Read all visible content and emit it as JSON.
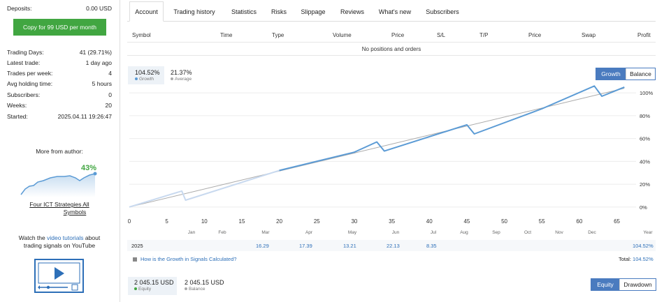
{
  "sidebar": {
    "deposits": {
      "label": "Deposits:",
      "value": "0.00 USD"
    },
    "copy_button": "Copy for 99 USD per month",
    "stats": [
      {
        "label": "Trading Days:",
        "value": "41 (29.71%)"
      },
      {
        "label": "Latest trade:",
        "value": "1 day ago"
      },
      {
        "label": "Trades per week:",
        "value": "4"
      },
      {
        "label": "Avg holding time:",
        "value": "5 hours"
      },
      {
        "label": "Subscribers:",
        "value": "0"
      },
      {
        "label": "Weeks:",
        "value": "20"
      },
      {
        "label": "Started:",
        "value": "2025.04.11 19:26:47"
      }
    ],
    "more_from_author": "More from author:",
    "author_signal": {
      "growth": "43%",
      "name_line1": "Four ICT Strategies All",
      "name_line2": "Symbols"
    },
    "watch": {
      "before": "Watch the ",
      "link": "video tutorials",
      "after": " about",
      "line2": "trading signals on YouTube"
    }
  },
  "tabs": [
    "Account",
    "Trading history",
    "Statistics",
    "Risks",
    "Slippage",
    "Reviews",
    "What's new",
    "Subscribers"
  ],
  "active_tab": "Account",
  "positions": {
    "columns": [
      "Symbol",
      "Time",
      "Type",
      "Volume",
      "Price",
      "S/L",
      "T/P",
      "Price",
      "Swap",
      "Profit"
    ],
    "empty_text": "No positions and orders"
  },
  "growth_panel": {
    "growth": {
      "value": "104.52%",
      "label": "Growth"
    },
    "average": {
      "value": "21.37%",
      "label": "Average"
    },
    "toggle": [
      "Growth",
      "Balance"
    ]
  },
  "chart_data": {
    "type": "line",
    "x_ticks": [
      0,
      5,
      10,
      15,
      20,
      25,
      30,
      35,
      40,
      45,
      50,
      55,
      60,
      65
    ],
    "y_ticks": [
      "0%",
      "20%",
      "40%",
      "60%",
      "80%",
      "100%"
    ],
    "ylim": [
      -5,
      108
    ],
    "xlim": [
      0,
      67
    ],
    "months": [
      "Jan",
      "Feb",
      "Mar",
      "Apr",
      "May",
      "Jun",
      "Jul",
      "Aug",
      "Sep",
      "Oct",
      "Nov",
      "Dec",
      "Year"
    ],
    "series": [
      {
        "values": [
          [
            0,
            0
          ],
          [
            7,
            14
          ],
          [
            7.5,
            6
          ],
          [
            20,
            32
          ],
          [
            30,
            48
          ],
          [
            33,
            57
          ],
          [
            34,
            49
          ],
          [
            45,
            72
          ],
          [
            46,
            64
          ],
          [
            55,
            86
          ],
          [
            62,
            106
          ],
          [
            63,
            97
          ],
          [
            66,
            105
          ]
        ]
      },
      {
        "values": [
          [
            0,
            0
          ],
          [
            66,
            104
          ]
        ]
      }
    ],
    "year": "2025",
    "monthly": [
      "",
      "",
      "16.29",
      "17.39",
      "13.21",
      "22.13",
      "8.35",
      "",
      "",
      "",
      "",
      "",
      "104.52%"
    ]
  },
  "how_link": "How is the Growth in Signals Calculated?",
  "total": {
    "label": "Total:",
    "value": "104.52%"
  },
  "equity_panel": {
    "equity": {
      "value": "2 045.15 USD",
      "label": "Equity"
    },
    "balance": {
      "value": "2 045.15 USD",
      "label": "Balance"
    },
    "toggle": [
      "Equity",
      "Drawdown"
    ]
  },
  "colors": {
    "accent": "#4a7bbf",
    "green": "#41a641",
    "growth_line": "#5b9bd5",
    "average_line": "#aaaaaa"
  }
}
